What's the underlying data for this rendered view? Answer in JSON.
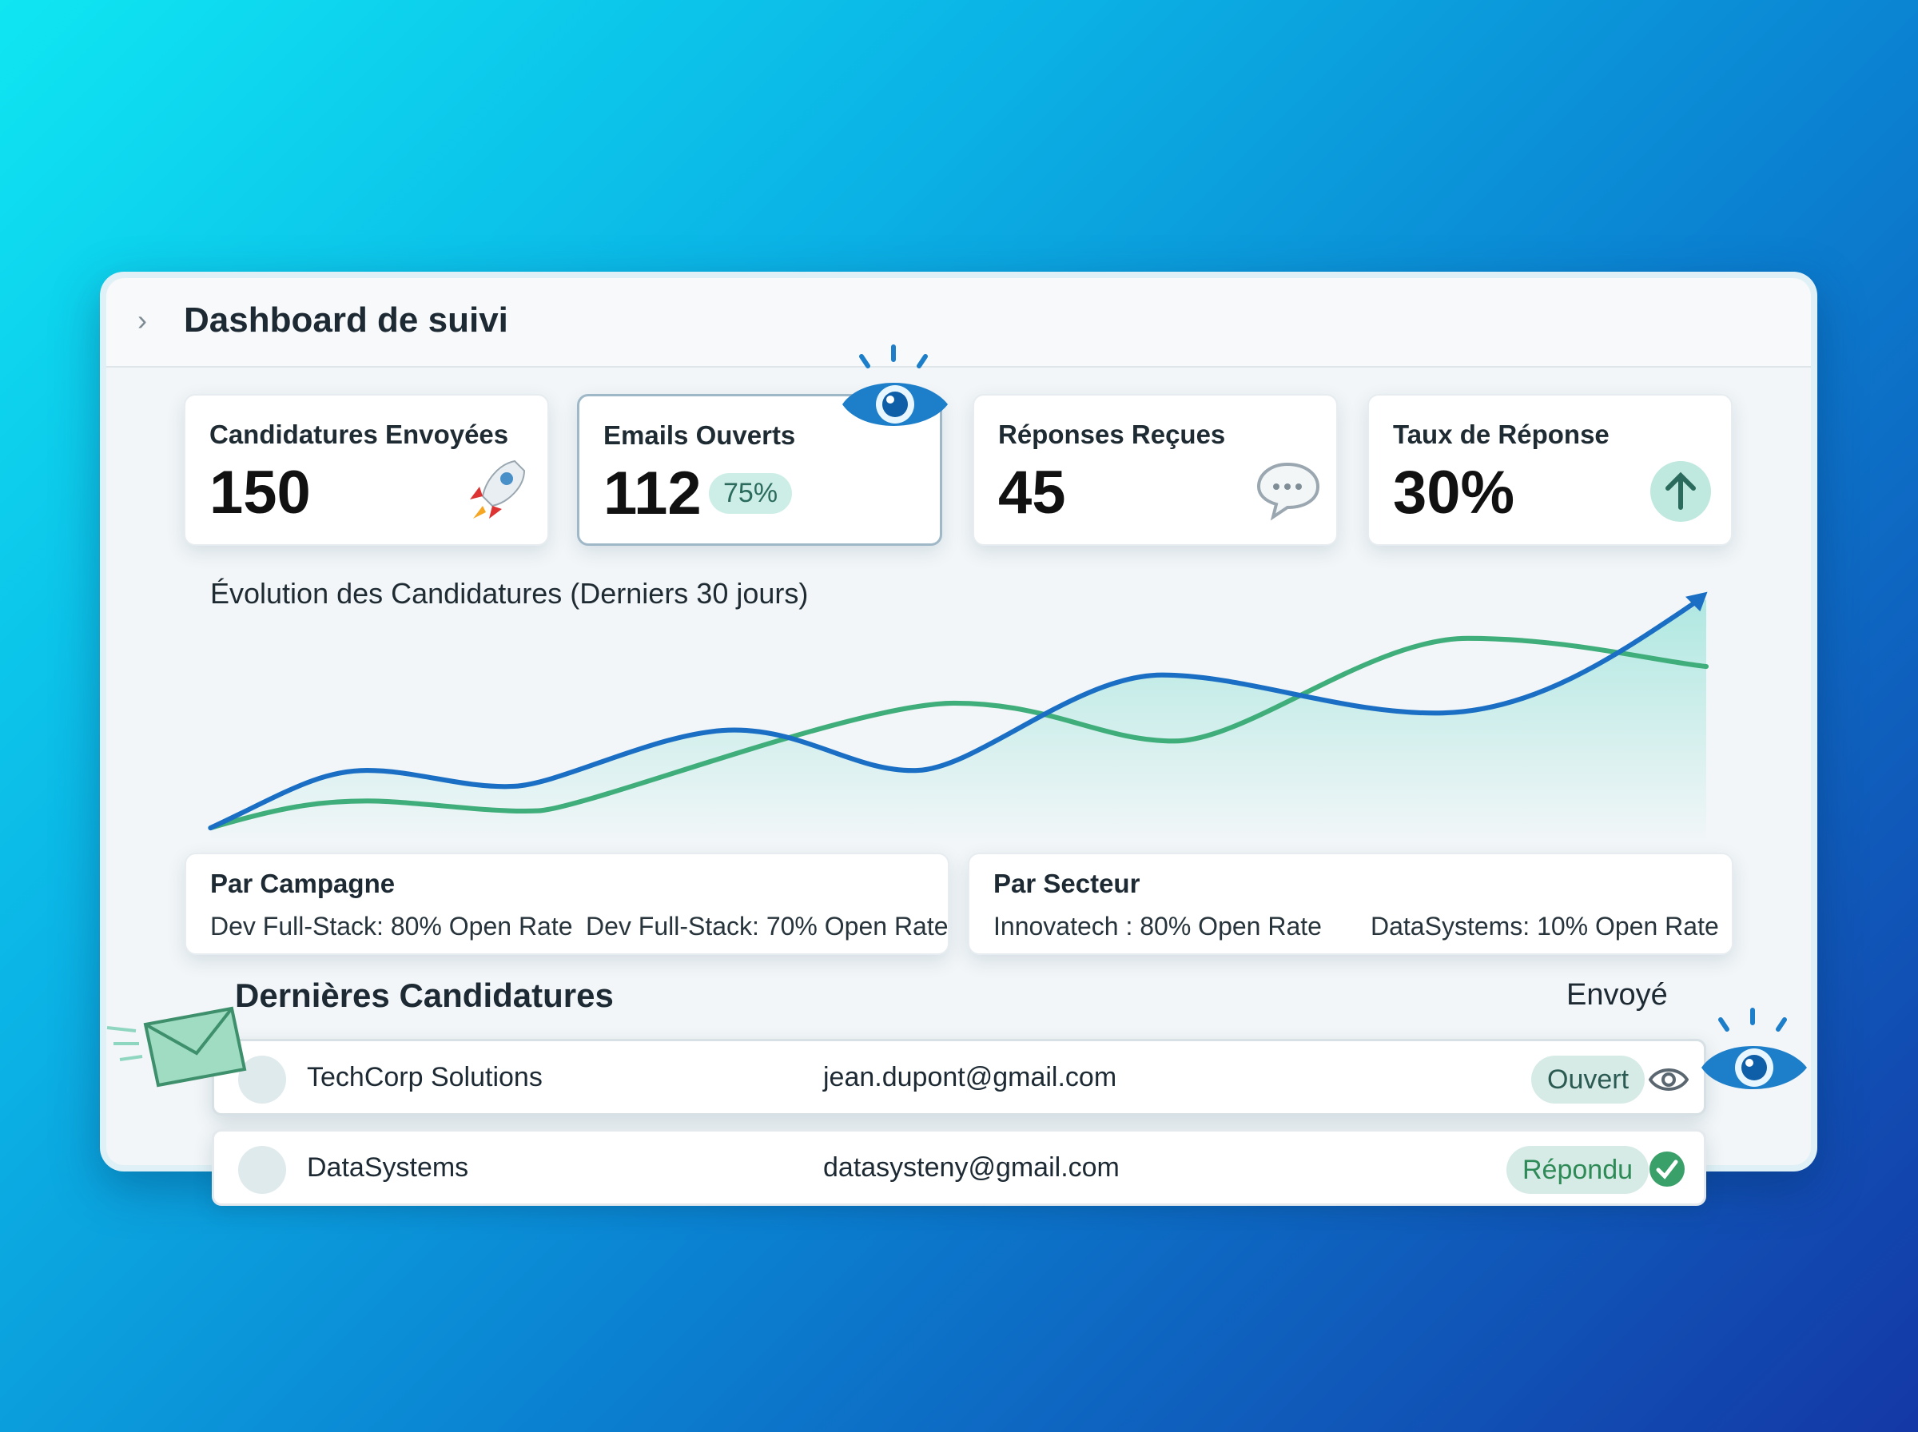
{
  "header": {
    "title": "Dashboard de suivi"
  },
  "cards": [
    {
      "label": "Candidatures Envoyées",
      "value": "150"
    },
    {
      "label": "Emails Ouverts",
      "value": "112",
      "badge": "75%"
    },
    {
      "label": "Réponses Reçues",
      "value": "45"
    },
    {
      "label": "Taux de Réponse",
      "value": "30%"
    }
  ],
  "chart": {
    "title": "Évolution des Candidatures (Derniers 30 jours)"
  },
  "breakdowns": [
    {
      "title": "Par Campagne",
      "items": [
        "Dev Full-Stack: 80% Open Rate",
        "Dev Full-Stack: 70% Open Rate"
      ]
    },
    {
      "title": "Par Secteur",
      "items": [
        "Innovatech : 80% Open Rate",
        "DataSystems: 10% Open Rate"
      ]
    }
  ],
  "recent": {
    "title": "Dernières Candidatures",
    "column": "Envoyé",
    "rows": [
      {
        "company": "TechCorp Solutions",
        "email": "jean.dupont@gmail.com",
        "status": "Ouvert"
      },
      {
        "company": "DataSystems",
        "email": "datasysteny@gmail.com",
        "status": "Répondu"
      }
    ]
  }
}
